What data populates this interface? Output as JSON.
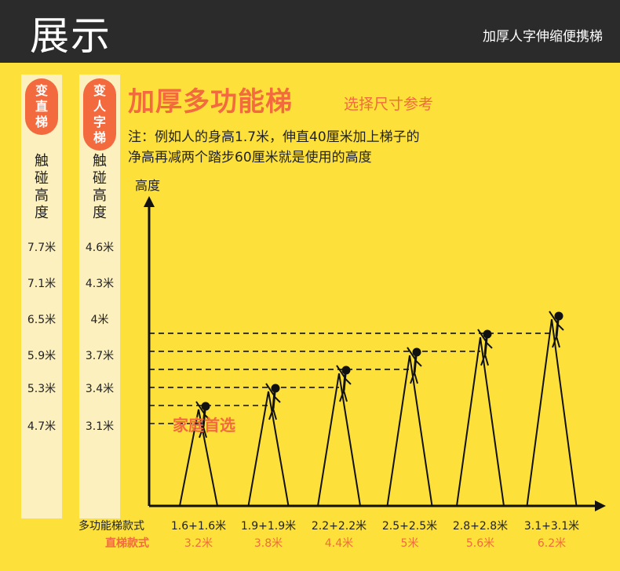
{
  "header": {
    "title": "展示",
    "subtitle": "加厚人字伸缩便携梯"
  },
  "left_columns": [
    {
      "badge": [
        "变",
        "直",
        "梯"
      ],
      "label": [
        "触",
        "碰",
        "高",
        "度"
      ],
      "values": [
        "7.7米",
        "7.1米",
        "6.5米",
        "5.9米",
        "5.3米",
        "4.7米"
      ]
    },
    {
      "badge": [
        "变",
        "人",
        "字",
        "梯"
      ],
      "label": [
        "触",
        "碰",
        "高",
        "度"
      ],
      "values": [
        "4.6米",
        "4.3米",
        "4米",
        "3.7米",
        "3.4米",
        "3.1米"
      ]
    }
  ],
  "main": {
    "title": "加厚多功能梯",
    "subtitle": "选择尺寸参考",
    "note_lines": [
      "注：例如人的身高1.7米，伸直40厘米加上梯子的",
      "净高再减两个踏步60厘米就是使用的高度"
    ]
  },
  "colors": {
    "header_bg": "#2b2b2b",
    "panel_bg": "#fde13a",
    "column_bg": "#fdf0bf",
    "accent": "#f26a3e"
  },
  "chart_data": {
    "type": "bar",
    "ylabel": "高度",
    "row_labels": [
      "多功能梯款式",
      "直梯款式"
    ],
    "categories": [
      "1.6+1.6米",
      "1.9+1.9米",
      "2.2+2.2米",
      "2.5+2.5米",
      "2.8+2.8米",
      "3.1+3.1米"
    ],
    "straight_lengths": [
      "3.2米",
      "3.8米",
      "4.4米",
      "5米",
      "5.6米",
      "6.2米"
    ],
    "values": [
      3.1,
      3.4,
      3.7,
      4.0,
      4.3,
      4.6
    ],
    "ylim": [
      0,
      5.0
    ],
    "annotation": "家庭首选",
    "annotation_index": 1
  }
}
